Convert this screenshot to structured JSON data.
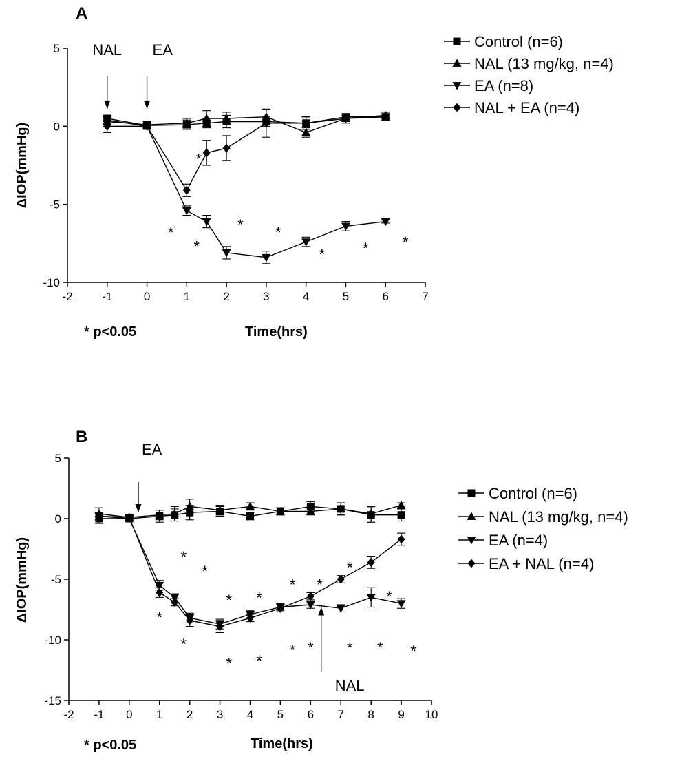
{
  "chart_data": [
    {
      "type": "line",
      "panel_label": "A",
      "xlabel": "Time(hrs)",
      "ylabel": "ΔIOP(mmHg)",
      "xlim": [
        -2,
        7
      ],
      "ylim": [
        -10,
        5
      ],
      "xticks": [
        -2,
        -1,
        0,
        1,
        2,
        3,
        4,
        5,
        6,
        7
      ],
      "yticks": [
        5,
        0,
        -5,
        -10
      ],
      "note": "* p<0.05",
      "arrows": [
        {
          "label": "NAL",
          "x": -1
        },
        {
          "label": "EA",
          "x": 0
        }
      ],
      "series": [
        {
          "name": "Control (n=6)",
          "marker": "square",
          "x": [
            -1,
            0,
            1,
            1.5,
            2,
            3,
            4,
            5,
            6
          ],
          "y": [
            0.5,
            0.05,
            0.1,
            0.2,
            0.3,
            0.3,
            0.2,
            0.6,
            0.6
          ],
          "err": [
            0.2,
            0.15,
            0.3,
            0.3,
            0.4,
            0.3,
            0.4,
            0.2,
            0.2
          ]
        },
        {
          "name": "NAL (13 mg/kg, n=4)",
          "marker": "triangle-up",
          "x": [
            -1,
            0,
            1,
            1.5,
            2,
            3,
            4,
            5,
            6
          ],
          "y": [
            0.3,
            0.1,
            0.2,
            0.5,
            0.5,
            0.6,
            -0.4,
            0.5,
            0.7
          ],
          "err": [
            0.3,
            0.2,
            0.3,
            0.5,
            0.4,
            0.5,
            0.3,
            0.2,
            0.2
          ]
        },
        {
          "name": "EA (n=8)",
          "marker": "triangle-down",
          "x": [
            -1,
            0,
            1,
            1.5,
            2,
            3,
            4,
            5,
            6
          ],
          "y": [
            0.4,
            0.0,
            -5.4,
            -6.1,
            -8.1,
            -8.4,
            -7.4,
            -6.4,
            -6.1
          ],
          "err": [
            0.2,
            0.15,
            0.3,
            0.4,
            0.4,
            0.4,
            0.3,
            0.3,
            0.1
          ]
        },
        {
          "name": "NAL + EA (n=4)",
          "marker": "diamond",
          "x": [
            -1,
            0,
            1,
            1.5,
            2,
            3,
            4,
            5,
            6
          ],
          "y": [
            0.0,
            0.0,
            -4.1,
            -1.7,
            -1.4,
            0.2,
            0.2,
            0.5,
            0.6
          ],
          "err": [
            0.4,
            0.2,
            0.4,
            0.8,
            0.8,
            0.9,
            0.4,
            0.3,
            0.2
          ]
        }
      ],
      "stars": [
        {
          "x": 1.3,
          "y": -2.0
        },
        {
          "x": 0.6,
          "y": -6.7
        },
        {
          "x": 1.25,
          "y": -7.6
        },
        {
          "x": 2.35,
          "y": -6.2
        },
        {
          "x": 3.3,
          "y": -6.7
        },
        {
          "x": 4.4,
          "y": -8.1
        },
        {
          "x": 5.5,
          "y": -7.7
        },
        {
          "x": 6.5,
          "y": -7.3
        }
      ]
    },
    {
      "type": "line",
      "panel_label": "B",
      "xlabel": "Time(hrs)",
      "ylabel": "ΔIOP(mmHg)",
      "xlim": [
        -2,
        10
      ],
      "ylim": [
        -15,
        5
      ],
      "xticks": [
        -2,
        -1,
        0,
        1,
        2,
        3,
        4,
        5,
        6,
        7,
        8,
        9,
        10
      ],
      "yticks": [
        5,
        0,
        -5,
        -10,
        -15
      ],
      "note": "* p<0.05",
      "arrows": [
        {
          "label": "EA",
          "x": 0.3
        },
        {
          "label": "NAL",
          "x": 6.35
        }
      ],
      "series": [
        {
          "name": "Control (n=6)",
          "marker": "square",
          "x": [
            -1,
            0,
            1,
            1.5,
            2,
            3,
            4,
            5,
            6,
            7,
            8,
            9
          ],
          "y": [
            0.0,
            0.0,
            0.2,
            0.3,
            0.5,
            0.6,
            0.2,
            0.6,
            1.0,
            0.8,
            0.3,
            0.3
          ],
          "err": [
            0.4,
            0.2,
            0.5,
            0.5,
            0.6,
            0.4,
            0.3,
            0.3,
            0.4,
            0.5,
            0.6,
            0.5
          ]
        },
        {
          "name": "NAL (13 mg/kg, n=4)",
          "marker": "triangle-up",
          "x": [
            -1,
            0,
            1,
            1.5,
            2,
            3,
            4,
            5,
            6,
            7,
            8,
            9
          ],
          "y": [
            0.4,
            0.1,
            0.3,
            0.4,
            1.0,
            0.7,
            1.0,
            0.6,
            0.6,
            0.8,
            0.4,
            1.1
          ],
          "err": [
            0.5,
            0.2,
            0.4,
            0.6,
            0.6,
            0.4,
            0.3,
            0.3,
            0.3,
            0.5,
            0.6,
            0.2
          ]
        },
        {
          "name": "EA (n=4)",
          "marker": "triangle-down",
          "x": [
            -1,
            0,
            1,
            1.5,
            2,
            3,
            4,
            5,
            6,
            7,
            8,
            9
          ],
          "y": [
            0.2,
            0.0,
            -5.5,
            -6.5,
            -8.2,
            -8.7,
            -7.9,
            -7.3,
            -7.1,
            -7.4,
            -6.5,
            -7.0
          ],
          "err": [
            0.3,
            0.2,
            0.4,
            0.3,
            0.4,
            0.4,
            0.3,
            0.3,
            0.3,
            0.3,
            0.8,
            0.4
          ]
        },
        {
          "name": "EA + NAL (n=4)",
          "marker": "diamond",
          "x": [
            -1,
            0,
            1,
            1.5,
            2,
            3,
            4,
            5,
            6,
            7,
            8,
            9
          ],
          "y": [
            0.2,
            0.1,
            -6.1,
            -6.9,
            -8.4,
            -8.9,
            -8.2,
            -7.4,
            -6.4,
            -5.0,
            -3.6,
            -1.7
          ],
          "err": [
            0.3,
            0.2,
            0.4,
            0.3,
            0.5,
            0.5,
            0.3,
            0.3,
            0.3,
            0.3,
            0.5,
            0.5
          ]
        }
      ],
      "stars": [
        {
          "x": 1.8,
          "y": -3.0
        },
        {
          "x": 2.5,
          "y": -4.2
        },
        {
          "x": 3.3,
          "y": -6.6
        },
        {
          "x": 4.3,
          "y": -6.4
        },
        {
          "x": 5.4,
          "y": -5.3
        },
        {
          "x": 6.3,
          "y": -5.3
        },
        {
          "x": 7.3,
          "y": -3.9
        },
        {
          "x": 8.6,
          "y": -6.3
        },
        {
          "x": 1.0,
          "y": -8.0
        },
        {
          "x": 1.8,
          "y": -10.2
        },
        {
          "x": 3.3,
          "y": -11.8
        },
        {
          "x": 4.3,
          "y": -11.6
        },
        {
          "x": 5.4,
          "y": -10.7
        },
        {
          "x": 6.0,
          "y": -10.5
        },
        {
          "x": 7.3,
          "y": -10.5
        },
        {
          "x": 8.3,
          "y": -10.5
        },
        {
          "x": 9.4,
          "y": -10.8
        }
      ]
    }
  ]
}
